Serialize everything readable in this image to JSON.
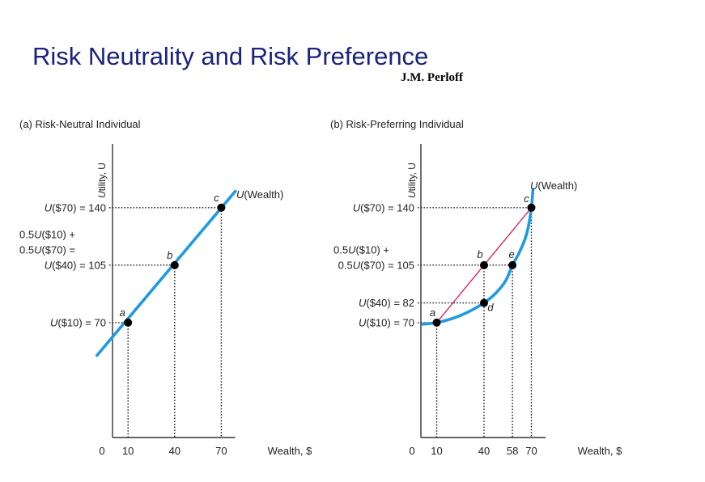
{
  "title": "Risk Neutrality and Risk Preference",
  "author": "J.M. Perloff",
  "chart_data": [
    {
      "type": "line",
      "title": "(a) Risk-Neutral Individual",
      "xlabel": "Wealth, $",
      "ylabel": "Utility, U",
      "origin_label": "0",
      "xlim": [
        0,
        80
      ],
      "ylim": [
        0,
        170
      ],
      "grid": false,
      "x_ticks": [
        {
          "x": 10,
          "label": "10"
        },
        {
          "x": 40,
          "label": "40"
        },
        {
          "x": 70,
          "label": "70"
        }
      ],
      "y_ticks": [
        {
          "y": 140,
          "label": "U($70) = 140"
        },
        {
          "y": 105,
          "label": "U($40) = 105",
          "pre": [
            "0.5U($10) +",
            "0.5U($70) ="
          ]
        },
        {
          "y": 70,
          "label": "U($10) = 70"
        }
      ],
      "series": [
        {
          "name": "U(Wealth)",
          "color": "#1e9ae0",
          "x": [
            -10,
            79
          ],
          "y": [
            50,
            150
          ]
        }
      ],
      "points": [
        {
          "label": "a",
          "x": 10,
          "y": 70
        },
        {
          "label": "b",
          "x": 40,
          "y": 105
        },
        {
          "label": "c",
          "x": 70,
          "y": 140
        }
      ]
    },
    {
      "type": "line",
      "title": "(b) Risk-Preferring Individual",
      "xlabel": "Wealth, $",
      "ylabel": "Utility, U",
      "origin_label": "0",
      "xlim": [
        0,
        80
      ],
      "ylim": [
        0,
        170
      ],
      "grid": false,
      "x_ticks": [
        {
          "x": 10,
          "label": "10"
        },
        {
          "x": 40,
          "label": "40"
        },
        {
          "x": 58,
          "label": "58"
        },
        {
          "x": 70,
          "label": "70"
        }
      ],
      "y_ticks": [
        {
          "y": 140,
          "label": "U($70) = 140"
        },
        {
          "y": 105,
          "label": "0.5U($70) = 105",
          "pre": [
            "0.5U($10) +"
          ]
        },
        {
          "y": 82,
          "label": "U($40) = 82"
        },
        {
          "y": 70,
          "label": "U($10) = 70"
        }
      ],
      "series": [
        {
          "name": "U(Wealth)",
          "color": "#1e9ae0",
          "x": [
            1,
            10,
            20,
            30,
            40,
            48,
            54,
            58,
            62,
            66,
            68,
            70,
            71
          ],
          "y": [
            69,
            70,
            72.5,
            76.5,
            82,
            88.5,
            96,
            105,
            112,
            121,
            128,
            140,
            151
          ]
        },
        {
          "name": "",
          "color": "#e0185f",
          "x": [
            10,
            70
          ],
          "y": [
            70,
            140
          ]
        }
      ],
      "points": [
        {
          "label": "a",
          "x": 10,
          "y": 70
        },
        {
          "label": "b",
          "x": 40,
          "y": 105
        },
        {
          "label": "c",
          "x": 70,
          "y": 140
        },
        {
          "label": "d",
          "x": 40,
          "y": 82
        },
        {
          "label": "e",
          "x": 58,
          "y": 105
        }
      ]
    }
  ]
}
